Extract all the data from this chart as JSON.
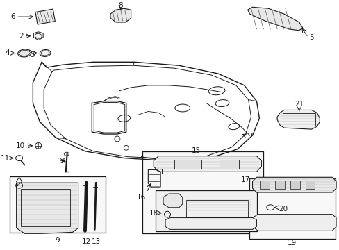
{
  "bg_color": "#ffffff",
  "line_color": "#1a1a1a",
  "figsize": [
    4.89,
    3.6
  ],
  "dpi": 100,
  "headliner_outer": [
    [
      0.48,
      1.62
    ],
    [
      0.32,
      2.05
    ],
    [
      0.38,
      2.42
    ],
    [
      0.55,
      2.72
    ],
    [
      0.8,
      2.95
    ],
    [
      1.2,
      3.15
    ],
    [
      1.8,
      3.28
    ],
    [
      2.5,
      3.3
    ],
    [
      3.1,
      3.22
    ],
    [
      3.45,
      3.05
    ],
    [
      3.62,
      2.82
    ],
    [
      3.68,
      2.55
    ],
    [
      3.6,
      2.28
    ],
    [
      3.4,
      2.08
    ],
    [
      3.05,
      1.92
    ],
    [
      2.55,
      1.8
    ],
    [
      1.95,
      1.75
    ],
    [
      1.4,
      1.78
    ],
    [
      0.92,
      1.88
    ],
    [
      0.62,
      2.02
    ],
    [
      0.48,
      1.62
    ]
  ],
  "headliner_inner": [
    [
      0.65,
      1.75
    ],
    [
      0.52,
      2.08
    ],
    [
      0.58,
      2.4
    ],
    [
      0.75,
      2.65
    ],
    [
      1.0,
      2.85
    ],
    [
      1.4,
      3.02
    ],
    [
      1.95,
      3.12
    ],
    [
      2.52,
      3.14
    ],
    [
      3.05,
      3.07
    ],
    [
      3.35,
      2.92
    ],
    [
      3.5,
      2.7
    ],
    [
      3.54,
      2.45
    ],
    [
      3.48,
      2.22
    ],
    [
      3.28,
      2.05
    ],
    [
      2.95,
      1.9
    ],
    [
      2.48,
      1.8
    ],
    [
      1.92,
      1.75
    ],
    [
      1.38,
      1.78
    ],
    [
      0.9,
      1.88
    ],
    [
      0.72,
      1.98
    ],
    [
      0.65,
      1.75
    ]
  ]
}
